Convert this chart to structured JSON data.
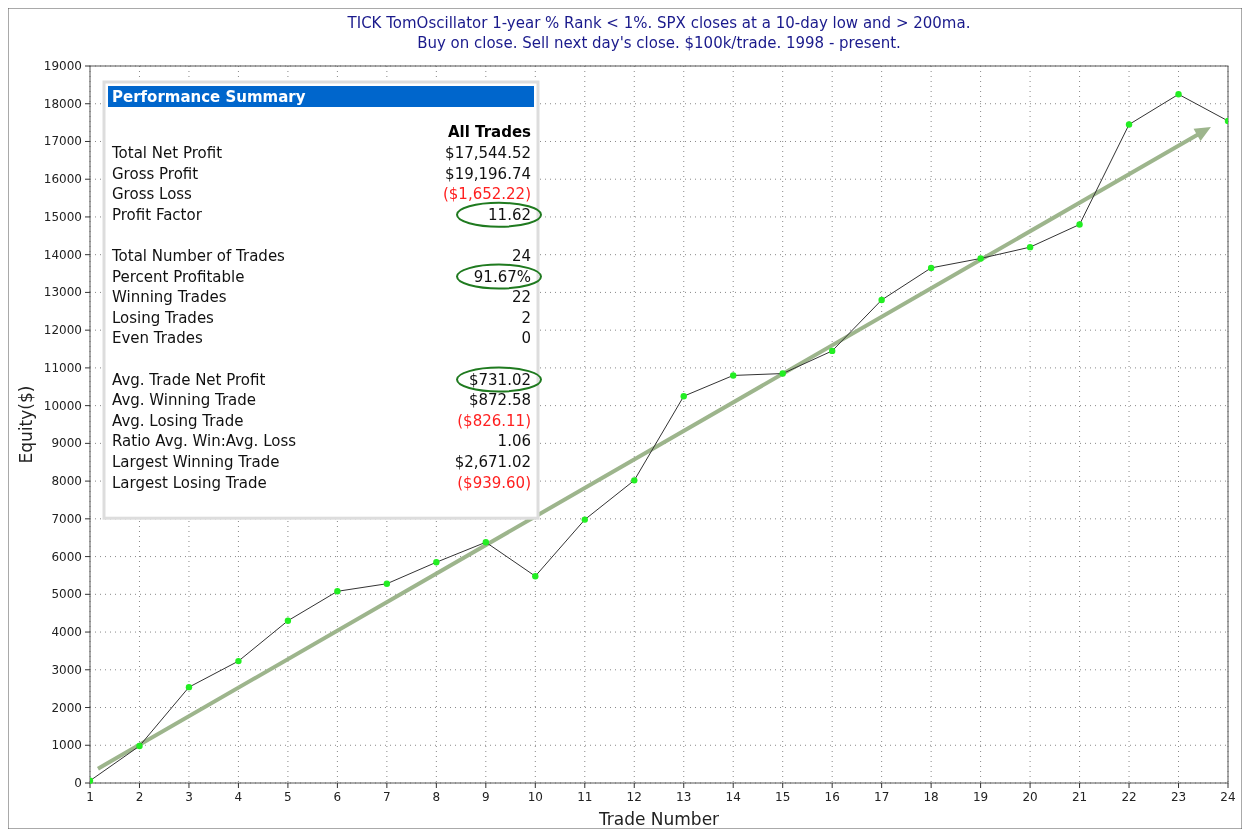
{
  "chart_data": {
    "type": "line",
    "title": "TICK TomOscillator 1-year % Rank < 1%. SPX closes at a 10-day low and > 200ma.",
    "subtitle": "Buy on close. Sell next day's close. $100k/trade. 1998 - present.",
    "xlabel": "Trade Number",
    "ylabel": "Equity($)",
    "xlim": [
      1,
      24
    ],
    "xticks": [
      1,
      2,
      3,
      4,
      5,
      6,
      7,
      8,
      9,
      10,
      11,
      12,
      13,
      14,
      15,
      16,
      17,
      18,
      19,
      20,
      21,
      22,
      23,
      24
    ],
    "ylim": [
      0,
      19000
    ],
    "yticks": [
      0,
      1000,
      2000,
      3000,
      4000,
      5000,
      6000,
      7000,
      8000,
      9000,
      10000,
      11000,
      12000,
      13000,
      14000,
      15000,
      16000,
      17000,
      18000,
      19000
    ],
    "grid": true,
    "marker": "circle",
    "line_style": "solid",
    "series": [
      {
        "color": "#333333",
        "x": [
          1,
          2,
          3,
          4,
          5,
          6,
          7,
          8,
          9,
          10,
          11,
          12,
          13,
          14,
          15,
          16,
          17,
          18,
          19,
          20,
          21,
          22,
          23,
          24
        ],
        "values": [
          60,
          980,
          2540,
          3230,
          4300,
          5080,
          5280,
          5850,
          6380,
          5480,
          6980,
          8020,
          10250,
          10800,
          10850,
          11450,
          12800,
          13650,
          13900,
          14200,
          14800,
          17450,
          18250,
          17544.52
        ]
      }
    ],
    "annotations": [
      "Performance Summary",
      "All Trades",
      "Total Net Profit",
      "$17,544.52",
      "Gross Profit",
      "$19,196.74",
      "Gross Loss",
      "($1,652.22)",
      "Profit Factor",
      "11.62",
      "Total Number of Trades",
      "24",
      "Percent Profitable",
      "91.67%",
      "Winning Trades",
      "22",
      "Losing Trades",
      "2",
      "Even Trades",
      "0",
      "Avg. Trade Net Profit",
      "$731.02",
      "Avg. Winning Trade",
      "$872.58",
      "Avg. Losing Trade",
      "($826.11)",
      "Ratio Avg. Win:Avg. Loss",
      "1.06",
      "Largest Winning Trade",
      "$2,671.02",
      "Largest Losing Trade",
      "($939.60)"
    ]
  }
}
